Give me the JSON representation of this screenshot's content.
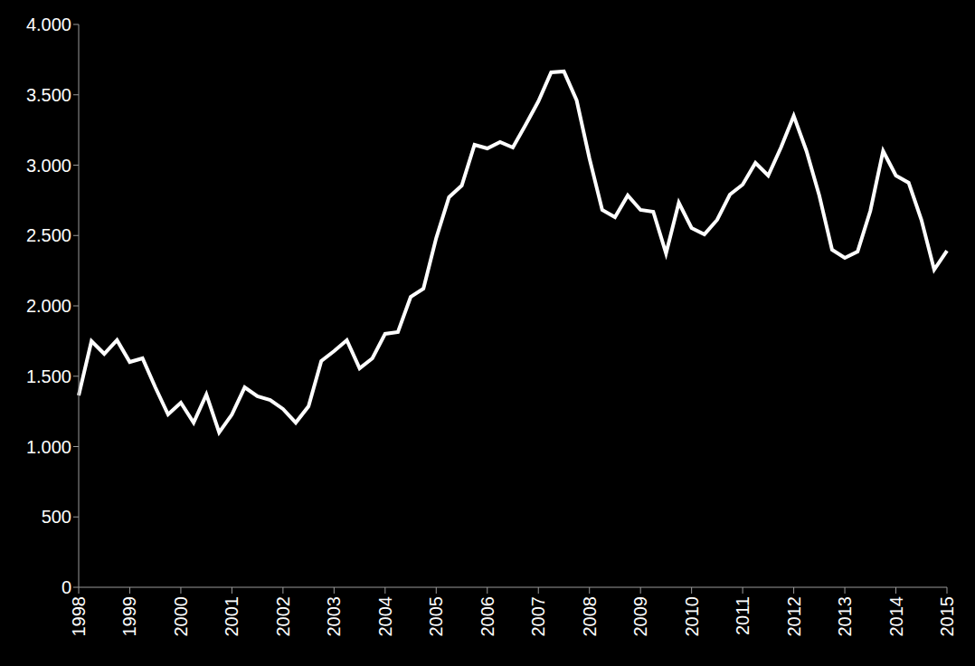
{
  "chart_data": {
    "type": "line",
    "color": "#ffffff",
    "grid": false,
    "categories": [
      "1998",
      null,
      null,
      null,
      "1999",
      null,
      null,
      null,
      "2000",
      null,
      null,
      null,
      "2001",
      null,
      null,
      null,
      "2002",
      null,
      null,
      null,
      "2003",
      null,
      null,
      null,
      "2004",
      null,
      null,
      null,
      "2005",
      null,
      null,
      null,
      "2006",
      null,
      null,
      null,
      "2007",
      null,
      null,
      null,
      "2008",
      null,
      null,
      null,
      "2009",
      null,
      null,
      null,
      "2010",
      null,
      null,
      null,
      "2011",
      null,
      null,
      null,
      "2012",
      null,
      null,
      null,
      "2013",
      null,
      null,
      null,
      "2014",
      null,
      null,
      null,
      "2015"
    ],
    "values": [
      1363,
      1749,
      1659,
      1756,
      1601,
      1627,
      1421,
      1228,
      1312,
      1170,
      1370,
      1100,
      1228,
      1421,
      1357,
      1331,
      1267,
      1170,
      1286,
      1608,
      1678,
      1756,
      1556,
      1627,
      1801,
      1814,
      2064,
      2122,
      2482,
      2772,
      2855,
      3145,
      3119,
      3164,
      3125,
      3286,
      3453,
      3659,
      3666,
      3460,
      3048,
      2682,
      2630,
      2785,
      2682,
      2669,
      2373,
      2733,
      2553,
      2508,
      2611,
      2791,
      2862,
      3016,
      2926,
      3125,
      3350,
      3100,
      2785,
      2399,
      2341,
      2386,
      2675,
      3100,
      2926,
      2875,
      2611,
      2257,
      2392
    ],
    "ylim": [
      0,
      4000
    ],
    "yticks": [
      0,
      500,
      {
        "value": 1000,
        "label": "1.000"
      },
      {
        "value": 1500,
        "label": "1.500"
      },
      {
        "value": 2000,
        "label": "2.000"
      },
      {
        "value": 2500,
        "label": "2.500"
      },
      {
        "value": 3000,
        "label": "3.000"
      },
      {
        "value": 3500,
        "label": "3.500"
      },
      {
        "value": 4000,
        "label": "4.000"
      }
    ]
  }
}
